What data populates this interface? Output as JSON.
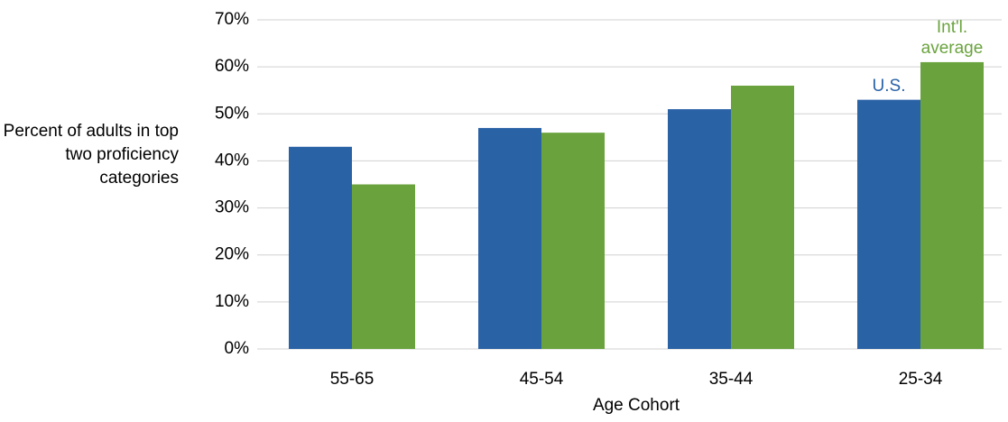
{
  "chart_data": {
    "type": "bar",
    "y_label": "Percent of adults in top two proficiency categories",
    "x_label": "Age Cohort",
    "categories": [
      "55-65",
      "45-54",
      "35-44",
      "25-34"
    ],
    "series": [
      {
        "name": "U.S.",
        "color": "#2a62a6",
        "values": [
          43,
          47,
          51,
          53
        ]
      },
      {
        "name": "Int'l. average",
        "color": "#6aa33e",
        "values": [
          35,
          46,
          56,
          61
        ]
      }
    ],
    "ylim": [
      0,
      70
    ],
    "yticks": [
      {
        "value": 0,
        "label": "0%"
      },
      {
        "value": 10,
        "label": "10%"
      },
      {
        "value": 20,
        "label": "20%"
      },
      {
        "value": 30,
        "label": "30%"
      },
      {
        "value": 40,
        "label": "40%"
      },
      {
        "value": 50,
        "label": "50%"
      },
      {
        "value": 60,
        "label": "60%"
      },
      {
        "value": 70,
        "label": "70%"
      }
    ],
    "grid": true
  }
}
